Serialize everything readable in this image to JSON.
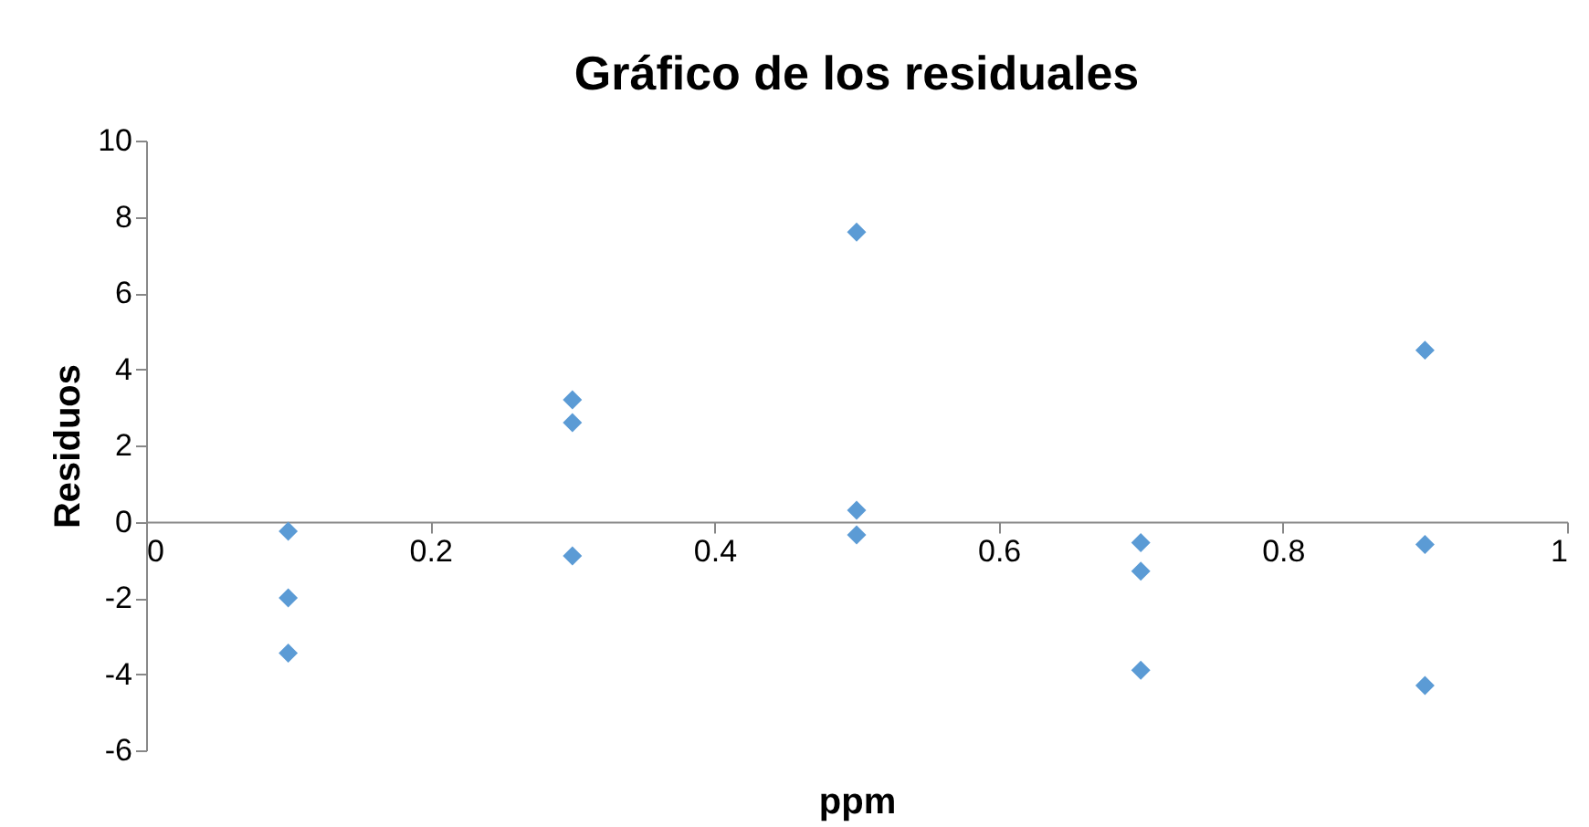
{
  "chart_data": {
    "type": "scatter",
    "title": "Gráfico de los residuales",
    "xlabel": "ppm",
    "ylabel": "Residuos",
    "x": [
      0.1,
      0.1,
      0.1,
      0.3,
      0.3,
      0.3,
      0.5,
      0.5,
      0.5,
      0.7,
      0.7,
      0.7,
      0.9,
      0.9,
      0.9
    ],
    "series": [
      {
        "color": "#5b9bd5",
        "values": [
          -0.25,
          -2.0,
          -3.45,
          3.2,
          2.6,
          -0.9,
          7.6,
          0.3,
          -0.35,
          -0.55,
          -1.3,
          -3.9,
          4.5,
          -0.6,
          -4.3
        ]
      }
    ],
    "xlim": [
      0,
      1
    ],
    "xticks": [
      0,
      0.2,
      0.4,
      0.6,
      0.8,
      1
    ],
    "ylim": [
      -6,
      10
    ],
    "yticks": [
      -6,
      -4,
      -2,
      0,
      2,
      4,
      6,
      8,
      10
    ],
    "marker": "diamond",
    "grid": false
  }
}
